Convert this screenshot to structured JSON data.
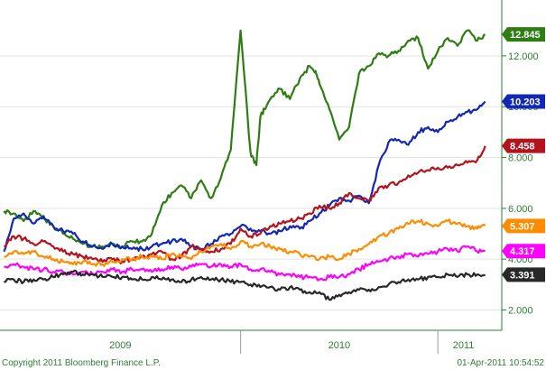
{
  "chart_data": {
    "type": "line",
    "y_axis": {
      "side": "right",
      "ylim": [
        1.2,
        14.2
      ],
      "ticks": [
        "2.000",
        "4.000",
        "6.000",
        "8.000",
        "10.000",
        "12.000"
      ]
    },
    "x_axis": {
      "period_labels": [
        "2009",
        "2010",
        "2011"
      ]
    },
    "series": [
      {
        "color": "#2e7d12",
        "last_value": "12.845",
        "x": [
          2008.8,
          2008.85,
          2008.9,
          2008.95,
          2009.0,
          2009.05,
          2009.1,
          2009.15,
          2009.2,
          2009.25,
          2009.3,
          2009.35,
          2009.4,
          2009.45,
          2009.5,
          2009.55,
          2009.6,
          2009.65,
          2009.7,
          2009.75,
          2009.8,
          2009.85,
          2009.9,
          2009.95,
          2010.0,
          2010.05,
          2010.08,
          2010.1,
          2010.12,
          2010.15,
          2010.2,
          2010.25,
          2010.3,
          2010.35,
          2010.38,
          2010.4,
          2010.45,
          2010.5,
          2010.55,
          2010.6,
          2010.65,
          2010.7,
          2010.75,
          2010.8,
          2010.85,
          2010.9,
          2010.95,
          2011.0,
          2011.05,
          2011.1,
          2011.15,
          2011.2,
          2011.24
        ],
        "y": [
          5.9,
          5.8,
          5.5,
          5.9,
          5.6,
          5.3,
          5.0,
          4.8,
          4.6,
          4.5,
          4.5,
          4.6,
          4.5,
          4.7,
          4.7,
          5.0,
          6.1,
          6.6,
          6.9,
          6.4,
          7.1,
          6.4,
          7.2,
          8.3,
          13.0,
          8.2,
          7.7,
          9.6,
          9.9,
          10.3,
          10.7,
          10.3,
          11.1,
          11.6,
          11.4,
          10.9,
          9.9,
          8.7,
          9.2,
          11.3,
          11.6,
          12.1,
          12.0,
          12.2,
          12.6,
          12.7,
          11.5,
          12.2,
          12.7,
          12.4,
          13.0,
          12.6,
          12.845
        ]
      },
      {
        "color": "#1228b4",
        "last_value": "10.203",
        "x": [
          2008.8,
          2008.85,
          2008.9,
          2008.95,
          2009.0,
          2009.05,
          2009.1,
          2009.15,
          2009.2,
          2009.25,
          2009.3,
          2009.35,
          2009.4,
          2009.45,
          2009.5,
          2009.55,
          2009.6,
          2009.65,
          2009.7,
          2009.75,
          2009.8,
          2009.85,
          2009.9,
          2009.95,
          2010.0,
          2010.05,
          2010.1,
          2010.15,
          2010.2,
          2010.25,
          2010.3,
          2010.35,
          2010.4,
          2010.45,
          2010.5,
          2010.55,
          2010.6,
          2010.65,
          2010.7,
          2010.75,
          2010.8,
          2010.85,
          2010.9,
          2010.95,
          2011.0,
          2011.05,
          2011.1,
          2011.15,
          2011.2,
          2011.24
        ],
        "y": [
          4.3,
          5.6,
          5.8,
          5.4,
          5.7,
          5.3,
          5.1,
          5.0,
          4.7,
          4.5,
          4.4,
          4.6,
          4.5,
          4.4,
          4.4,
          4.5,
          4.6,
          4.7,
          4.8,
          4.5,
          4.4,
          4.6,
          4.9,
          5.0,
          5.3,
          5.2,
          5.1,
          5.0,
          5.1,
          5.3,
          5.2,
          5.5,
          5.8,
          6.1,
          6.4,
          6.3,
          6.5,
          6.2,
          7.7,
          8.6,
          8.7,
          8.5,
          9.0,
          9.2,
          9.0,
          9.4,
          9.6,
          9.8,
          9.9,
          10.203
        ]
      },
      {
        "color": "#b4121c",
        "last_value": "8.458",
        "x": [
          2008.8,
          2008.85,
          2008.9,
          2008.95,
          2009.0,
          2009.05,
          2009.1,
          2009.15,
          2009.2,
          2009.25,
          2009.3,
          2009.35,
          2009.4,
          2009.45,
          2009.5,
          2009.55,
          2009.6,
          2009.65,
          2009.7,
          2009.75,
          2009.8,
          2009.85,
          2009.9,
          2009.95,
          2010.0,
          2010.05,
          2010.1,
          2010.15,
          2010.2,
          2010.25,
          2010.3,
          2010.35,
          2010.4,
          2010.45,
          2010.5,
          2010.55,
          2010.6,
          2010.65,
          2010.7,
          2010.75,
          2010.8,
          2010.85,
          2010.9,
          2010.95,
          2011.0,
          2011.05,
          2011.1,
          2011.15,
          2011.2,
          2011.24
        ],
        "y": [
          4.5,
          4.9,
          4.8,
          4.6,
          4.7,
          4.5,
          4.3,
          4.2,
          4.1,
          4.0,
          3.9,
          4.0,
          3.9,
          4.0,
          4.1,
          4.2,
          4.3,
          4.0,
          4.1,
          4.5,
          4.4,
          4.3,
          4.4,
          4.6,
          5.2,
          4.9,
          5.0,
          5.3,
          5.4,
          5.5,
          5.6,
          5.8,
          6.1,
          6.0,
          6.2,
          6.6,
          6.4,
          6.3,
          6.8,
          6.9,
          7.0,
          7.3,
          7.4,
          7.5,
          7.6,
          7.6,
          7.7,
          7.8,
          7.9,
          8.458
        ]
      },
      {
        "color": "#ff8c00",
        "last_value": "5.307",
        "x": [
          2008.8,
          2008.85,
          2008.9,
          2008.95,
          2009.0,
          2009.05,
          2009.1,
          2009.15,
          2009.2,
          2009.25,
          2009.3,
          2009.35,
          2009.4,
          2009.45,
          2009.5,
          2009.55,
          2009.6,
          2009.65,
          2009.7,
          2009.75,
          2009.8,
          2009.85,
          2009.9,
          2009.95,
          2010.0,
          2010.05,
          2010.1,
          2010.15,
          2010.2,
          2010.25,
          2010.3,
          2010.35,
          2010.4,
          2010.45,
          2010.5,
          2010.55,
          2010.6,
          2010.65,
          2010.7,
          2010.75,
          2010.8,
          2010.85,
          2010.9,
          2010.95,
          2011.0,
          2011.05,
          2011.1,
          2011.15,
          2011.2,
          2011.24
        ],
        "y": [
          4.1,
          4.3,
          4.2,
          4.3,
          4.1,
          4.0,
          3.9,
          3.8,
          3.9,
          3.8,
          3.8,
          3.9,
          4.0,
          4.0,
          4.1,
          4.1,
          4.0,
          4.2,
          4.1,
          4.0,
          4.3,
          4.5,
          4.6,
          4.4,
          4.7,
          4.5,
          4.6,
          4.5,
          4.4,
          4.3,
          4.2,
          4.1,
          4.0,
          4.1,
          4.0,
          4.2,
          4.4,
          4.6,
          4.9,
          5.0,
          5.2,
          5.4,
          5.5,
          5.4,
          5.3,
          5.5,
          5.4,
          5.3,
          5.2,
          5.307
        ]
      },
      {
        "color": "#ff00ff",
        "last_value": "4.317",
        "x": [
          2008.8,
          2008.85,
          2008.9,
          2008.95,
          2009.0,
          2009.05,
          2009.1,
          2009.15,
          2009.2,
          2009.25,
          2009.3,
          2009.35,
          2009.4,
          2009.45,
          2009.5,
          2009.55,
          2009.6,
          2009.65,
          2009.7,
          2009.75,
          2009.8,
          2009.85,
          2009.9,
          2009.95,
          2010.0,
          2010.05,
          2010.1,
          2010.15,
          2010.2,
          2010.25,
          2010.3,
          2010.35,
          2010.4,
          2010.45,
          2010.5,
          2010.55,
          2010.6,
          2010.65,
          2010.7,
          2010.75,
          2010.8,
          2010.85,
          2010.9,
          2010.95,
          2011.0,
          2011.05,
          2011.1,
          2011.15,
          2011.2,
          2011.24
        ],
        "y": [
          3.7,
          3.8,
          3.7,
          3.6,
          3.6,
          3.5,
          3.5,
          3.4,
          3.5,
          3.4,
          3.5,
          3.6,
          3.5,
          3.6,
          3.6,
          3.5,
          3.6,
          3.7,
          3.6,
          3.7,
          3.8,
          3.7,
          3.8,
          3.7,
          3.8,
          3.6,
          3.6,
          3.5,
          3.4,
          3.4,
          3.3,
          3.3,
          3.2,
          3.3,
          3.3,
          3.4,
          3.6,
          3.8,
          3.9,
          4.0,
          4.1,
          4.2,
          4.1,
          4.2,
          4.3,
          4.4,
          4.3,
          4.5,
          4.3,
          4.317
        ]
      },
      {
        "color": "#282828",
        "last_value": "3.391",
        "x": [
          2008.8,
          2008.85,
          2008.9,
          2008.95,
          2009.0,
          2009.05,
          2009.1,
          2009.15,
          2009.2,
          2009.25,
          2009.3,
          2009.35,
          2009.4,
          2009.45,
          2009.5,
          2009.55,
          2009.6,
          2009.65,
          2009.7,
          2009.75,
          2009.8,
          2009.85,
          2009.9,
          2009.95,
          2010.0,
          2010.05,
          2010.1,
          2010.15,
          2010.2,
          2010.25,
          2010.3,
          2010.35,
          2010.4,
          2010.45,
          2010.5,
          2010.55,
          2010.6,
          2010.65,
          2010.7,
          2010.75,
          2010.8,
          2010.85,
          2010.9,
          2010.95,
          2011.0,
          2011.05,
          2011.1,
          2011.15,
          2011.2,
          2011.24
        ],
        "y": [
          3.1,
          3.2,
          3.1,
          3.2,
          3.2,
          3.3,
          3.4,
          3.5,
          3.4,
          3.4,
          3.3,
          3.3,
          3.3,
          3.2,
          3.2,
          3.3,
          3.2,
          3.2,
          3.1,
          3.2,
          3.3,
          3.2,
          3.2,
          3.1,
          3.1,
          3.0,
          2.9,
          2.9,
          2.8,
          2.9,
          2.8,
          2.7,
          2.7,
          2.4,
          2.6,
          2.7,
          2.8,
          2.8,
          2.9,
          3.0,
          3.1,
          3.2,
          3.2,
          3.3,
          3.3,
          3.4,
          3.3,
          3.4,
          3.4,
          3.391
        ]
      }
    ]
  },
  "footer": {
    "copyright": "Copyright 2011 Bloomberg Finance L.P.",
    "timestamp": "01-Apr-2011 10:54:52"
  }
}
